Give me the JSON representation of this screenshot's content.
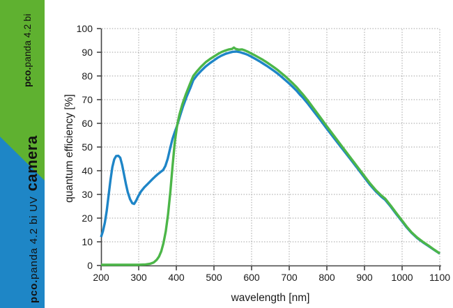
{
  "sidebar": {
    "green": "#5FB130",
    "blue": "#1E86C6",
    "text_color": "#111111",
    "top_label": {
      "brand": "pco.",
      "product": "panda 4.2 bi"
    },
    "bottom_label": {
      "brand": "pco.",
      "product": "panda 4.2 bi UV",
      "word": "camera"
    }
  },
  "chart_data": {
    "type": "line",
    "title": "",
    "xlabel": "wavelength [nm]",
    "ylabel": "quantum efficiency [%]",
    "xlim": [
      200,
      1100
    ],
    "ylim": [
      0,
      100
    ],
    "x_ticks": [
      200,
      300,
      400,
      500,
      600,
      700,
      800,
      900,
      1000,
      1100
    ],
    "y_ticks": [
      0,
      10,
      20,
      30,
      40,
      50,
      60,
      70,
      80,
      90,
      100
    ],
    "grid": "dotted",
    "grid_color": "#9c9c9c",
    "axis_color": "#444444",
    "legend": "none",
    "series": [
      {
        "name": "pco.panda 4.2 bi UV",
        "color": "#1E85C7",
        "points": [
          [
            200,
            12
          ],
          [
            205,
            14.5
          ],
          [
            210,
            18
          ],
          [
            215,
            23
          ],
          [
            220,
            29.5
          ],
          [
            225,
            36
          ],
          [
            230,
            41.5
          ],
          [
            235,
            44.8
          ],
          [
            240,
            46.2
          ],
          [
            246,
            46.3
          ],
          [
            251,
            45.5
          ],
          [
            256,
            42.5
          ],
          [
            261,
            38.5
          ],
          [
            266,
            34.5
          ],
          [
            271,
            31
          ],
          [
            277,
            28
          ],
          [
            283,
            26.3
          ],
          [
            288,
            26
          ],
          [
            293,
            27.3
          ],
          [
            299,
            29.3
          ],
          [
            306,
            31.2
          ],
          [
            315,
            33
          ],
          [
            325,
            34.6
          ],
          [
            335,
            36.2
          ],
          [
            344,
            37.6
          ],
          [
            352,
            38.7
          ],
          [
            359,
            39.6
          ],
          [
            365,
            40.3
          ],
          [
            371,
            42
          ],
          [
            377,
            45
          ],
          [
            384,
            49.8
          ],
          [
            390,
            53.5
          ],
          [
            396,
            56.3
          ],
          [
            402,
            59
          ],
          [
            410,
            63.2
          ],
          [
            418,
            67.2
          ],
          [
            428,
            71.5
          ],
          [
            438,
            75.2
          ],
          [
            445,
            78.2
          ],
          [
            455,
            80.3
          ],
          [
            465,
            82
          ],
          [
            478,
            84
          ],
          [
            490,
            85.5
          ],
          [
            500,
            86.6
          ],
          [
            510,
            87.7
          ],
          [
            520,
            88.6
          ],
          [
            530,
            89.3
          ],
          [
            540,
            89.8
          ],
          [
            550,
            90.2
          ],
          [
            560,
            90.3
          ],
          [
            570,
            90
          ],
          [
            580,
            89.5
          ],
          [
            590,
            88.9
          ],
          [
            600,
            88.1
          ],
          [
            610,
            87.2
          ],
          [
            620,
            86.3
          ],
          [
            630,
            85.3
          ],
          [
            640,
            84.3
          ],
          [
            650,
            83.2
          ],
          [
            660,
            82.1
          ],
          [
            670,
            80.9
          ],
          [
            680,
            79.6
          ],
          [
            690,
            78.2
          ],
          [
            700,
            76.8
          ],
          [
            710,
            75.3
          ],
          [
            720,
            73.7
          ],
          [
            728,
            72.2
          ],
          [
            736,
            70.9
          ],
          [
            750,
            68.2
          ],
          [
            765,
            65.1
          ],
          [
            780,
            62
          ],
          [
            800,
            57.7
          ],
          [
            820,
            53.6
          ],
          [
            840,
            49.5
          ],
          [
            860,
            45.4
          ],
          [
            880,
            41.3
          ],
          [
            900,
            37.1
          ],
          [
            915,
            34
          ],
          [
            930,
            31.3
          ],
          [
            945,
            29
          ],
          [
            955,
            27.7
          ],
          [
            970,
            24.8
          ],
          [
            985,
            21.6
          ],
          [
            1000,
            18.6
          ],
          [
            1012,
            16.1
          ],
          [
            1025,
            13.8
          ],
          [
            1040,
            11.6
          ],
          [
            1055,
            9.8
          ],
          [
            1070,
            8.2
          ],
          [
            1085,
            6.6
          ],
          [
            1100,
            5
          ]
        ]
      },
      {
        "name": "pco.panda 4.2 bi",
        "color": "#4CB648",
        "points": [
          [
            200,
            0.3
          ],
          [
            250,
            0.3
          ],
          [
            300,
            0.3
          ],
          [
            318,
            0.4
          ],
          [
            330,
            0.7
          ],
          [
            340,
            1.3
          ],
          [
            348,
            2.4
          ],
          [
            354,
            3.8
          ],
          [
            360,
            6
          ],
          [
            366,
            9.5
          ],
          [
            372,
            14.5
          ],
          [
            378,
            21.5
          ],
          [
            384,
            31
          ],
          [
            390,
            42
          ],
          [
            396,
            52
          ],
          [
            402,
            59
          ],
          [
            408,
            63.5
          ],
          [
            416,
            68
          ],
          [
            426,
            72.5
          ],
          [
            436,
            76.5
          ],
          [
            445,
            80
          ],
          [
            455,
            82
          ],
          [
            465,
            83.8
          ],
          [
            478,
            85.8
          ],
          [
            490,
            87.2
          ],
          [
            500,
            88.2
          ],
          [
            510,
            89.2
          ],
          [
            520,
            90.1
          ],
          [
            530,
            90.7
          ],
          [
            540,
            91.2
          ],
          [
            548,
            91.4
          ],
          [
            553,
            92
          ],
          [
            558,
            91.4
          ],
          [
            566,
            91.1
          ],
          [
            574,
            91.2
          ],
          [
            582,
            90.8
          ],
          [
            592,
            90.1
          ],
          [
            600,
            89.4
          ],
          [
            610,
            88.6
          ],
          [
            620,
            87.7
          ],
          [
            630,
            86.8
          ],
          [
            640,
            85.8
          ],
          [
            650,
            84.7
          ],
          [
            660,
            83.6
          ],
          [
            670,
            82.4
          ],
          [
            680,
            81.1
          ],
          [
            690,
            79.8
          ],
          [
            700,
            78.3
          ],
          [
            710,
            76.8
          ],
          [
            720,
            75.2
          ],
          [
            728,
            73.7
          ],
          [
            736,
            72.3
          ],
          [
            750,
            69.5
          ],
          [
            765,
            66.3
          ],
          [
            780,
            63.1
          ],
          [
            800,
            58.7
          ],
          [
            820,
            54.5
          ],
          [
            840,
            50.3
          ],
          [
            860,
            46.1
          ],
          [
            880,
            41.9
          ],
          [
            900,
            37.7
          ],
          [
            915,
            34.6
          ],
          [
            930,
            31.8
          ],
          [
            945,
            29.5
          ],
          [
            955,
            28.2
          ],
          [
            970,
            25.2
          ],
          [
            985,
            22
          ],
          [
            1000,
            18.9
          ],
          [
            1012,
            16.4
          ],
          [
            1025,
            14
          ],
          [
            1040,
            11.8
          ],
          [
            1055,
            10
          ],
          [
            1070,
            8.4
          ],
          [
            1085,
            6.7
          ],
          [
            1100,
            5.1
          ]
        ]
      }
    ]
  }
}
